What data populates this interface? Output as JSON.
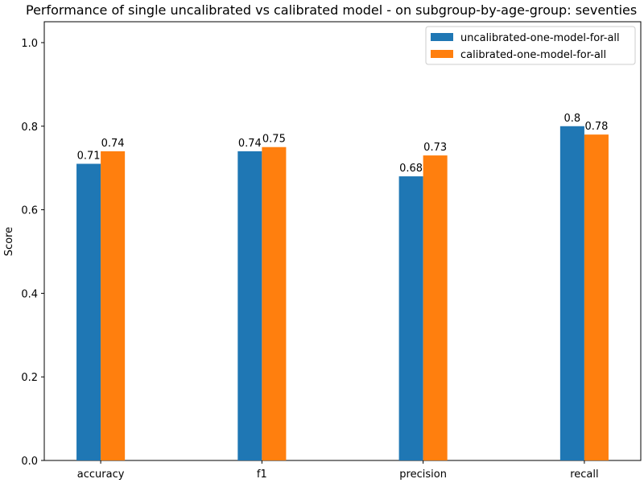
{
  "chart_data": {
    "type": "bar",
    "title": "Performance of single uncalibrated vs calibrated model - on subgroup-by-age-group: seventies",
    "xlabel": "",
    "ylabel": "Score",
    "ylim": [
      0,
      1.05
    ],
    "yticks": [
      "0.0",
      "0.2",
      "0.4",
      "0.6",
      "0.8",
      "1.0"
    ],
    "grid": false,
    "legend_position": "top-right",
    "categories": [
      "accuracy",
      "f1",
      "precision",
      "recall"
    ],
    "series": [
      {
        "name": "uncalibrated-one-model-for-all",
        "color": "#1f77b4",
        "values": [
          0.71,
          0.74,
          0.68,
          0.8
        ],
        "labels": [
          "0.71",
          "0.74",
          "0.68",
          "0.8"
        ]
      },
      {
        "name": "calibrated-one-model-for-all",
        "color": "#ff7f0e",
        "values": [
          0.74,
          0.75,
          0.73,
          0.78
        ],
        "labels": [
          "0.74",
          "0.75",
          "0.73",
          "0.78"
        ]
      }
    ]
  }
}
